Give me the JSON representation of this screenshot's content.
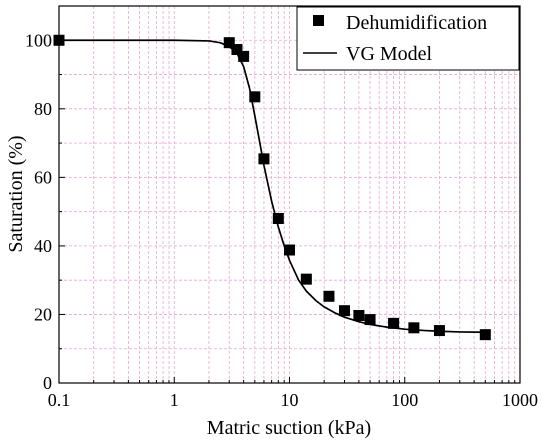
{
  "chart_data": {
    "type": "scatter",
    "title": "",
    "xlabel": "Matric suction (kPa)",
    "ylabel": "Saturation (%)",
    "x_scale": "log",
    "xlim": [
      0.1,
      1000
    ],
    "ylim": [
      0,
      110
    ],
    "x_ticks": [
      0.1,
      1,
      10,
      100,
      1000
    ],
    "x_tick_labels": [
      "0.1",
      "1",
      "10",
      "100",
      "1000"
    ],
    "y_ticks": [
      0,
      20,
      40,
      60,
      80,
      100
    ],
    "y_tick_labels": [
      "0",
      "20",
      "40",
      "60",
      "80",
      "100"
    ],
    "grid": true,
    "legend_position": "top-right",
    "series": [
      {
        "name": "Dehumidification",
        "type": "scatter",
        "marker": "square",
        "color": "#000000",
        "x": [
          0.1,
          3.0,
          3.5,
          4.0,
          5.0,
          6.0,
          8.0,
          10.0,
          14.0,
          22.0,
          30.0,
          40.0,
          50.0,
          80.0,
          120.0,
          200.0,
          500.0
        ],
        "y": [
          100.0,
          99.3,
          97.3,
          95.3,
          83.5,
          65.4,
          48.0,
          38.8,
          30.3,
          25.3,
          21.1,
          19.7,
          18.5,
          17.4,
          16.1,
          15.3,
          14.1
        ]
      },
      {
        "name": "VG Model",
        "type": "line",
        "color": "#000000",
        "x": [
          0.1,
          1,
          2,
          2.5,
          3.0,
          3.5,
          4.0,
          4.5,
          5.0,
          5.5,
          6.0,
          7.0,
          8.0,
          9.0,
          10.0,
          12.0,
          14.0,
          17.0,
          20.0,
          25.0,
          30.0,
          40.0,
          50.0,
          70.0,
          100.0,
          150.0,
          200.0,
          300.0,
          500.0
        ],
        "y": [
          100.0,
          100.0,
          99.8,
          99.3,
          98.2,
          96.2,
          92.3,
          86.0,
          78.0,
          70.5,
          63.5,
          53.0,
          45.5,
          40.0,
          35.8,
          30.0,
          26.8,
          24.0,
          22.2,
          20.4,
          19.2,
          17.9,
          17.1,
          16.3,
          15.7,
          15.3,
          15.1,
          14.9,
          14.8
        ]
      }
    ]
  }
}
